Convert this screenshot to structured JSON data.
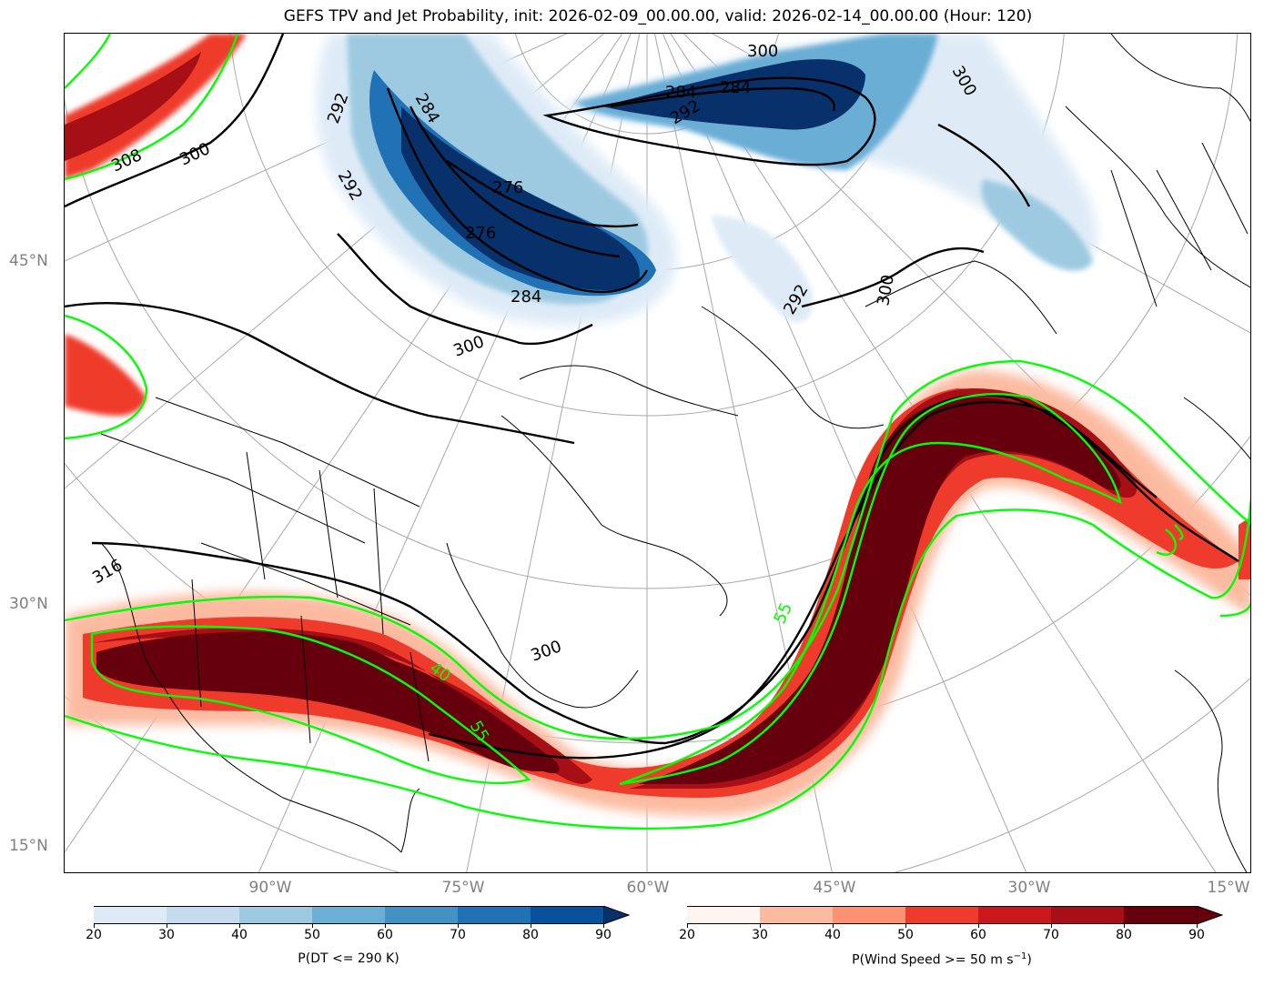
{
  "title": "GEFS TPV and Jet Probability, init: 2026-02-09_00.00.00, valid: 2026-02-14_00.00.00 (Hour: 120)",
  "lat_labels": [
    "45°N",
    "30°N",
    "15°N"
  ],
  "lon_labels": [
    "90°W",
    "75°W",
    "60°W",
    "45°W",
    "30°W",
    "15°W"
  ],
  "contour_labels": {
    "theta": [
      "308",
      "300",
      "292",
      "284",
      "284",
      "284",
      "292",
      "276",
      "276",
      "284",
      "300",
      "292",
      "300",
      "300",
      "316",
      "300",
      "292",
      "300"
    ],
    "wind": [
      "40",
      "55",
      "55"
    ]
  },
  "colorbars": [
    {
      "name": "tpv",
      "label": "P(DT <= 290 K)",
      "ticks": [
        "20",
        "30",
        "40",
        "50",
        "60",
        "70",
        "80",
        "90"
      ],
      "colors": [
        "#deebf7",
        "#c6dbef",
        "#9ecae1",
        "#6baed6",
        "#4292c6",
        "#2171b5",
        "#08519c",
        "#08306b"
      ]
    },
    {
      "name": "jet",
      "label_main": "P(Wind Speed >= 50 m s",
      "label_sup": "−1",
      "label_end": ")",
      "ticks": [
        "20",
        "30",
        "40",
        "50",
        "60",
        "70",
        "80",
        "90"
      ],
      "colors": [
        "#fff5f0",
        "#fcbba1",
        "#fc9272",
        "#ef3b2c",
        "#cb181d",
        "#a50f15",
        "#67000d",
        "#67000d"
      ]
    }
  ],
  "colors": {
    "contour_black": "#000000",
    "contour_green": "#00ff00",
    "graticule": "#a8a8a8",
    "label_gray": "#808080"
  }
}
